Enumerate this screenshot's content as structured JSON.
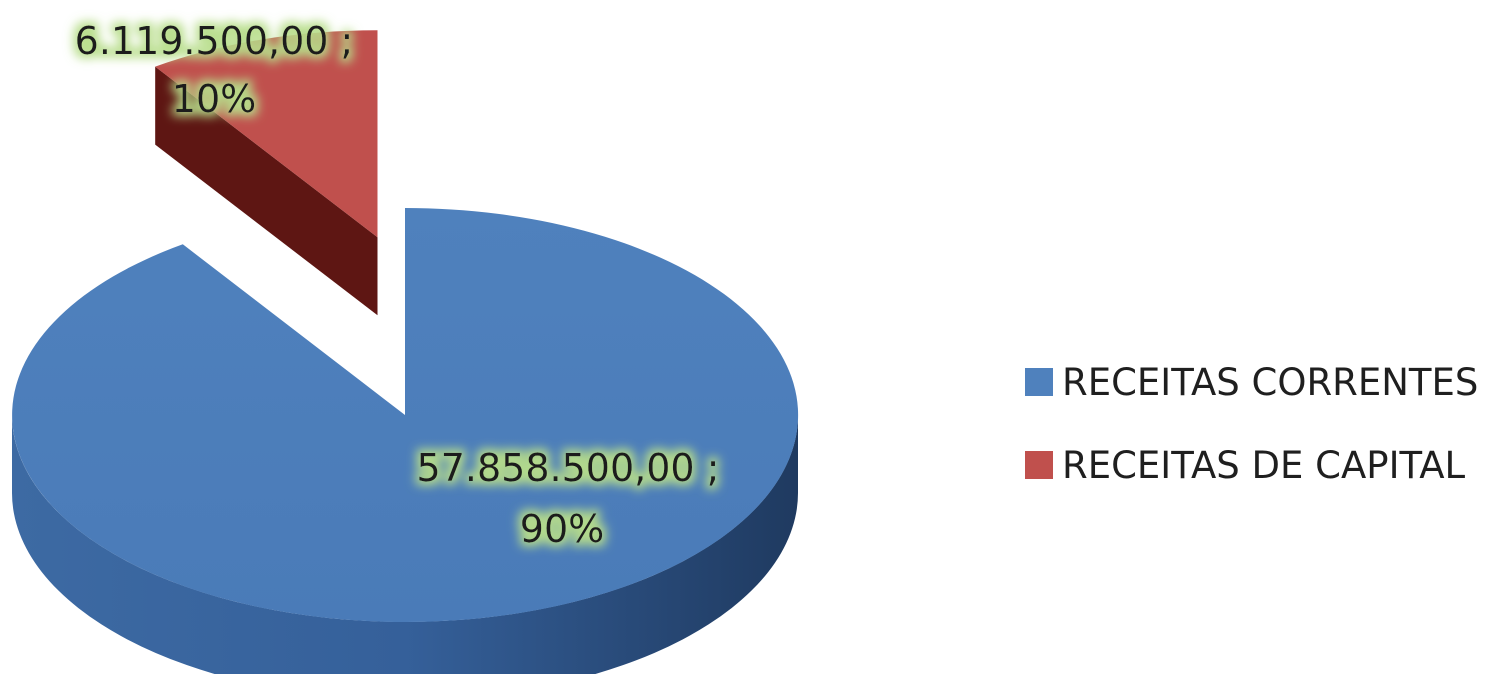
{
  "chart_data": {
    "type": "pie",
    "title": "",
    "categories": [
      "RECEITAS CORRENTES",
      "RECEITAS DE CAPITAL"
    ],
    "values": [
      57858500.0,
      6119500.0
    ],
    "percentages": [
      90,
      10
    ],
    "value_labels": [
      "57.858.500,00",
      "6.119.500,00"
    ],
    "percent_labels": [
      "90%",
      "10%"
    ],
    "colors": [
      "#4F81BD",
      "#C0504D"
    ],
    "legend": {
      "position": "right",
      "items": [
        {
          "label": "RECEITAS CORRENTES",
          "color": "#4F81BD"
        },
        {
          "label": "RECEITAS DE CAPITAL",
          "color": "#C0504D"
        }
      ]
    },
    "style": "3d-exploded",
    "label_highlight": "#b7dd8a"
  }
}
